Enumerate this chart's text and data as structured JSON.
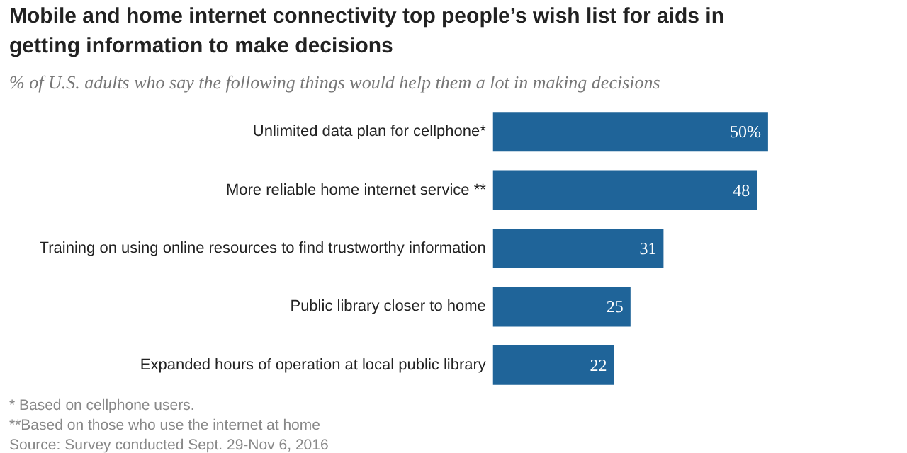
{
  "chart_data": {
    "type": "bar",
    "orientation": "horizontal",
    "title": "Mobile and home internet connectivity top people’s wish list for aids in getting information to make decisions",
    "subtitle": "% of U.S. adults who say the following things would help them a lot in making decisions",
    "categories": [
      "Unlimited data plan for cellphone*",
      "More reliable home internet service **",
      "Training on using online resources to find trustworthy information",
      "Public library closer to home",
      "Expanded hours of operation at local public library"
    ],
    "values": [
      50,
      48,
      31,
      25,
      22
    ],
    "value_labels": [
      "50%",
      "48",
      "31",
      "25",
      "22"
    ],
    "color": "#1f6499",
    "grid": false,
    "annotations": [
      "* Based on cellphone users.",
      "**Based on those who use the internet at home",
      "Source: Survey conducted Sept. 29-Nov 6, 2016"
    ]
  }
}
